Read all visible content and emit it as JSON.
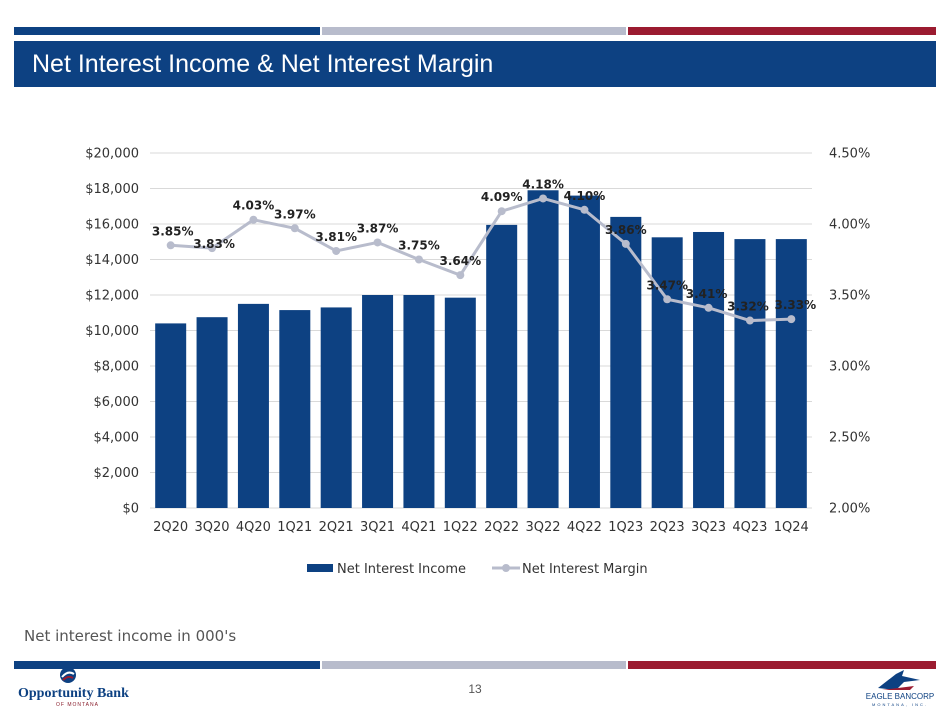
{
  "colors": {
    "navy": "#0d4182",
    "gray": "#b8bccc",
    "red": "#9b1b30",
    "line": "#b8bccc"
  },
  "slide": {
    "title": "Net Interest Income & Net Interest Margin",
    "footnote": "Net interest income in 000's",
    "page_number": "13"
  },
  "logos": {
    "left_name": "Opportunity Bank",
    "left_sub": "OF MONTANA",
    "right_name": "EAGLE BANCORP",
    "right_sub": "MONTANA, INC."
  },
  "chart_data": {
    "type": "bar",
    "categories": [
      "2Q20",
      "3Q20",
      "4Q20",
      "1Q21",
      "2Q21",
      "3Q21",
      "4Q21",
      "1Q22",
      "2Q22",
      "3Q22",
      "4Q22",
      "1Q23",
      "2Q23",
      "3Q23",
      "4Q23",
      "1Q24"
    ],
    "series": [
      {
        "name": "Net Interest Income",
        "type": "bar",
        "axis": "left",
        "values": [
          10400,
          10750,
          11500,
          11150,
          11300,
          12000,
          12000,
          11850,
          15950,
          17900,
          17600,
          16400,
          15250,
          15550,
          15150,
          15150
        ]
      },
      {
        "name": "Net Interest Margin",
        "type": "line",
        "axis": "right",
        "values": [
          3.85,
          3.83,
          4.03,
          3.97,
          3.81,
          3.87,
          3.75,
          3.64,
          4.09,
          4.18,
          4.1,
          3.86,
          3.47,
          3.41,
          3.32,
          3.33
        ],
        "labels": [
          "3.85%",
          "3.83%",
          "4.03%",
          "3.97%",
          "3.81%",
          "3.87%",
          "3.75%",
          "3.64%",
          "4.09%",
          "4.18%",
          "4.10%",
          "3.86%",
          "3.47%",
          "3.41%",
          "3.32%",
          "3.33%"
        ]
      }
    ],
    "y_left": {
      "min": 0,
      "max": 20000,
      "ticks": [
        "$0",
        "$2,000",
        "$4,000",
        "$6,000",
        "$8,000",
        "$10,000",
        "$12,000",
        "$14,000",
        "$16,000",
        "$18,000",
        "$20,000"
      ]
    },
    "y_right": {
      "min": 2.0,
      "max": 4.5,
      "ticks": [
        "2.00%",
        "2.50%",
        "3.00%",
        "3.50%",
        "4.00%",
        "4.50%"
      ]
    },
    "grid": true,
    "legend": {
      "position": "bottom",
      "items": [
        "Net Interest Income",
        "Net Interest Margin"
      ]
    }
  }
}
